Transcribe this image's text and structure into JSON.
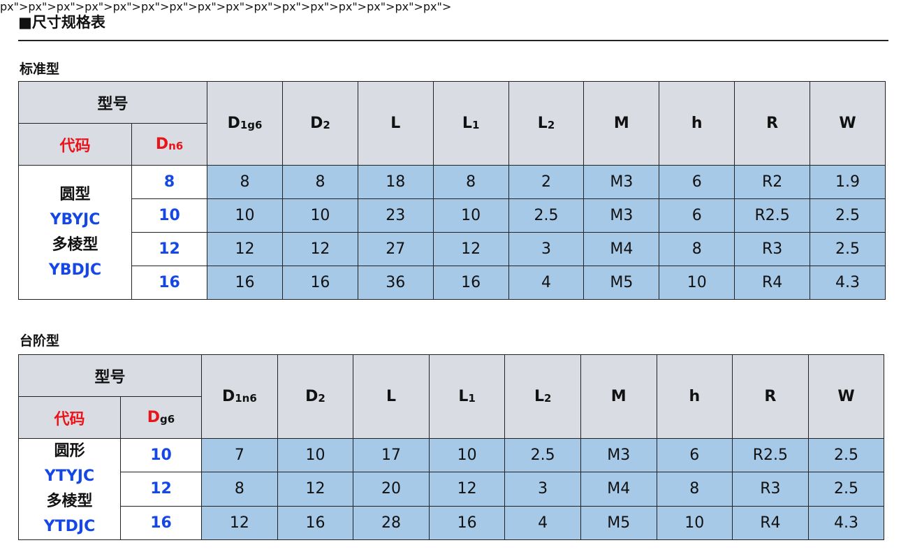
{
  "title": "■尺寸规格表",
  "tables": [
    {
      "section": "标准型",
      "model_label": "型号",
      "code_label": "代码",
      "d_label": {
        "main": "D",
        "sub": "n6",
        "sub_color": "red"
      },
      "columns": [
        {
          "main": "D",
          "sub": "1g6"
        },
        {
          "main": "D",
          "sub": "2"
        },
        {
          "main": "L",
          "sub": ""
        },
        {
          "main": "L",
          "sub": "1"
        },
        {
          "main": "L",
          "sub": "2"
        },
        {
          "main": "M",
          "sub": ""
        },
        {
          "main": "h",
          "sub": ""
        },
        {
          "main": "R",
          "sub": ""
        },
        {
          "main": "W",
          "sub": ""
        }
      ],
      "models": [
        "圆型",
        "YBYJC",
        "多棱型",
        "YBDJC"
      ],
      "rows": [
        {
          "d": "8",
          "v": [
            "8",
            "8",
            "18",
            "8",
            "2",
            "M3",
            "6",
            "R2",
            "1.9"
          ]
        },
        {
          "d": "10",
          "v": [
            "10",
            "10",
            "23",
            "10",
            "2.5",
            "M3",
            "6",
            "R2.5",
            "2.5"
          ]
        },
        {
          "d": "12",
          "v": [
            "12",
            "12",
            "27",
            "12",
            "3",
            "M4",
            "8",
            "R3",
            "2.5"
          ]
        },
        {
          "d": "16",
          "v": [
            "16",
            "16",
            "36",
            "16",
            "4",
            "M5",
            "10",
            "R4",
            "4.3"
          ]
        }
      ]
    },
    {
      "section": "台阶型",
      "model_label": "型号",
      "code_label": "代码",
      "d_label": {
        "main": "D",
        "sub": "g6",
        "sub_color": "black"
      },
      "columns": [
        {
          "main": "D",
          "sub": "1n6"
        },
        {
          "main": "D",
          "sub": "2"
        },
        {
          "main": "L",
          "sub": ""
        },
        {
          "main": "L",
          "sub": "1"
        },
        {
          "main": "L",
          "sub": "2"
        },
        {
          "main": "M",
          "sub": ""
        },
        {
          "main": "h",
          "sub": ""
        },
        {
          "main": "R",
          "sub": ""
        },
        {
          "main": "W",
          "sub": ""
        }
      ],
      "models": [
        "圆形",
        "YTYJC",
        "多棱型",
        "YTDJC"
      ],
      "rows": [
        {
          "d": "10",
          "v": [
            "7",
            "10",
            "17",
            "10",
            "2.5",
            "M3",
            "6",
            "R2.5",
            "2.5"
          ]
        },
        {
          "d": "12",
          "v": [
            "8",
            "12",
            "20",
            "12",
            "3",
            "M4",
            "8",
            "R3",
            "2.5"
          ]
        },
        {
          "d": "16",
          "v": [
            "12",
            "16",
            "28",
            "16",
            "4",
            "M5",
            "10",
            "R4",
            "4.3"
          ]
        }
      ]
    }
  ],
  "colors": {
    "header_bg": "#d9dde3",
    "value_bg": "#a7c9e8",
    "red": "#e8141a",
    "blue": "#1546e6"
  }
}
